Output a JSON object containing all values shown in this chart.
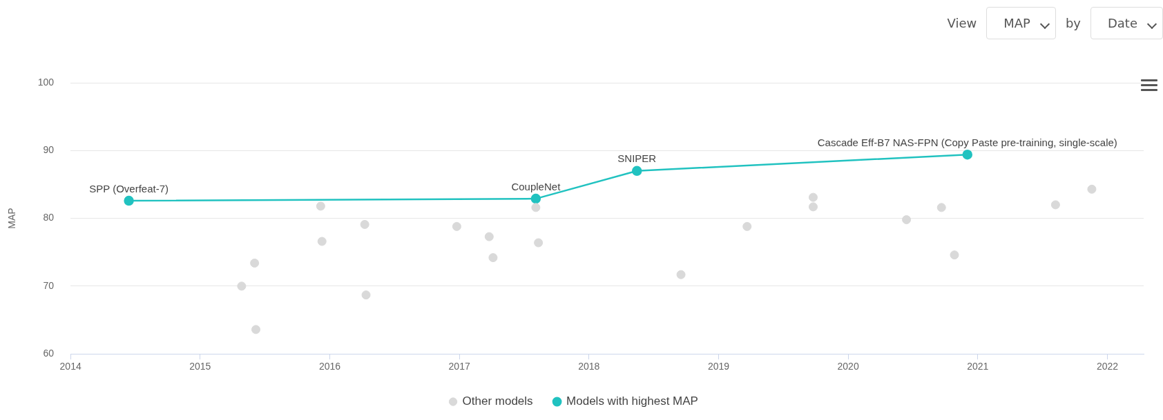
{
  "chart_data": {
    "type": "scatter",
    "ylabel": "MAP",
    "xlim": [
      2014,
      2022.28
    ],
    "xticks": [
      2014,
      2015,
      2016,
      2017,
      2018,
      2019,
      2020,
      2021,
      2022
    ],
    "ylim": [
      60,
      100
    ],
    "yticks": [
      60,
      70,
      80,
      90,
      100
    ],
    "grid": "y",
    "legend": "bottom",
    "marker": "circle",
    "series": [
      {
        "name": "Other models",
        "type": "scatter",
        "color": "#d9d9d9",
        "x": [
          2015.32,
          2015.42,
          2015.43,
          2015.93,
          2015.94,
          2016.27,
          2016.28,
          2016.98,
          2017.23,
          2017.26,
          2017.59,
          2017.61,
          2018.71,
          2019.22,
          2019.73,
          2019.73,
          2020.45,
          2020.72,
          2020.82,
          2021.6,
          2021.88
        ],
        "values": [
          70.0,
          73.4,
          63.6,
          81.8,
          76.6,
          79.1,
          68.7,
          78.8,
          77.3,
          74.2,
          81.6,
          76.4,
          71.7,
          78.8,
          83.1,
          81.7,
          79.8,
          81.6,
          74.6,
          82.0,
          84.3
        ]
      },
      {
        "name": "Models with highest MAP",
        "type": "line",
        "color": "#21c2c0",
        "x": [
          2014.45,
          2017.59,
          2018.37,
          2020.92
        ],
        "values": [
          82.6,
          82.9,
          87.0,
          89.4
        ]
      }
    ],
    "annotations": [
      "View",
      "MAP",
      "by",
      "Date",
      {
        "text": "SPP (Overfeat-7)",
        "x": 2014.45,
        "y": 82.6
      },
      {
        "text": "CoupleNet",
        "x": 2017.59,
        "y": 82.9
      },
      {
        "text": "SNIPER",
        "x": 2018.37,
        "y": 87.0
      },
      {
        "text": "Cascade Eff-B7 NAS-FPN (Copy Paste pre-training, single-scale)",
        "x": 2020.92,
        "y": 89.4
      }
    ]
  }
}
